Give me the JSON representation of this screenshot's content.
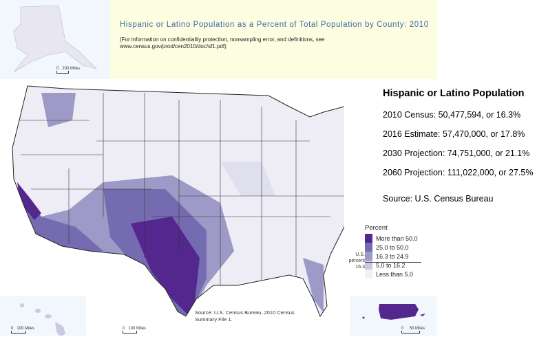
{
  "header": {
    "title": "Hispanic or Latino Population as a Percent of Total Population by County: 2010",
    "note": "(For information on confidentiality protection, nonsampling error, and definitions, see www.census.gov/prod/cen2010/doc/sf1.pdf)"
  },
  "insets": {
    "alaska_scale": {
      "zero": "0",
      "label": "200 Miles"
    },
    "hawaii_scale": {
      "zero": "0",
      "label": "100 Miles"
    },
    "main_scale": {
      "zero": "0",
      "label": "100 Miles"
    },
    "pr_scale": {
      "zero": "0",
      "label": "50 Miles"
    }
  },
  "source_note": "Source:  U.S. Census Bureau, 2010 Census Summary File 1.",
  "legend": {
    "title": "Percent",
    "us_percent_label": "U.S. percent",
    "us_percent_value": "16.3",
    "items": [
      {
        "label": "More than 50.0",
        "color": "#54278f"
      },
      {
        "label": "25.0 to 50.0",
        "color": "#756bb1"
      },
      {
        "label": "16.3 to 24.9",
        "color": "#9e9ac8"
      },
      {
        "label": "5.0 to 16.2",
        "color": "#cbc9e2"
      },
      {
        "label": "Less than 5.0",
        "color": "#f2f0f7"
      }
    ]
  },
  "side": {
    "heading": "Hispanic or Latino Population",
    "census_2010": "2010 Census: 50,477,594, or 16.3%",
    "estimate_2016": "2016 Estimate: 57,470,000, or 17.8%",
    "projection_2030": "2030 Projection: 74,751,000, or 21.1%",
    "projection_2060": "2060 Projection: 111,022,000, or 27.5%",
    "source": "Source: U.S. Census Bureau"
  }
}
